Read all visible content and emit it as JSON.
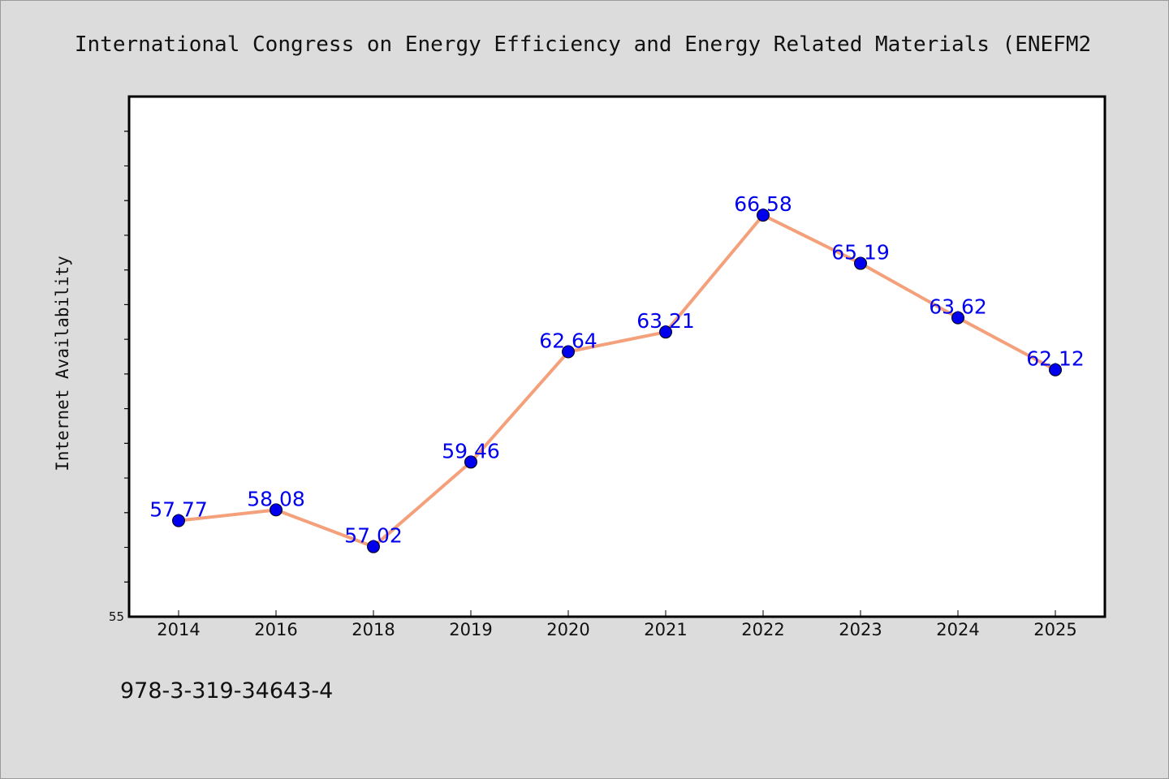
{
  "header": {
    "title": "International Congress on Energy Efficiency and Energy Related Materials (ENEFM2"
  },
  "footnote": "978-3-319-34643-4",
  "chart_data": {
    "type": "line",
    "title": "International Congress on Energy Efficiency and Energy Related Materials (ENEFM2",
    "xlabel": "",
    "ylabel": "Internet Availability",
    "categories": [
      "2014",
      "2016",
      "2018",
      "2019",
      "2020",
      "2021",
      "2022",
      "2023",
      "2024",
      "2025"
    ],
    "series": [
      {
        "values": [
          57.77,
          58.08,
          57.02,
          59.46,
          62.64,
          63.21,
          66.58,
          65.19,
          63.62,
          62.12
        ],
        "labels": [
          "57.77",
          "58.08",
          "57.02",
          "59.46",
          "62.64",
          "63.21",
          "66.58",
          "65.19",
          "63.62",
          "62.12"
        ]
      }
    ],
    "ylim": [
      55,
      70
    ],
    "ytick_labels": [
      "55"
    ],
    "grid": false,
    "legend": "none",
    "colors": {
      "line": "#f4a07a",
      "marker": "#0000ee",
      "data_label": "#0000ee"
    }
  }
}
